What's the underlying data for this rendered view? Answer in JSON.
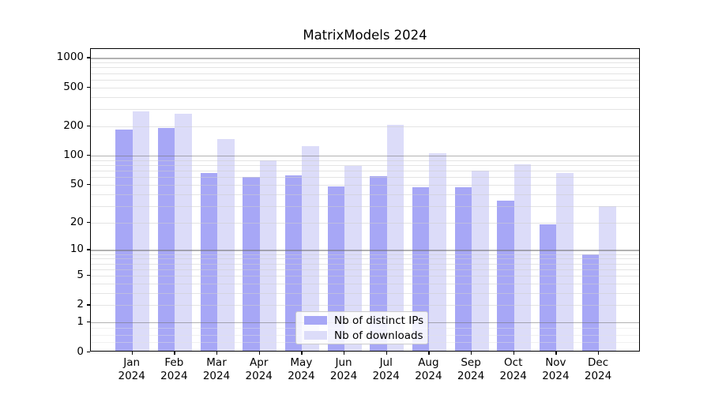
{
  "title": "MatrixModels 2024",
  "colors": {
    "ips_bar": "#a7a7f6",
    "downloads_bar": "#dcdcf9",
    "grid_major": "#b3b3b3",
    "grid_minor": "#e7e7e7",
    "spine": "#000000",
    "background": "#ffffff"
  },
  "legend": {
    "items": [
      {
        "label": "Nb of distinct IPs",
        "swatch_color": "#a7a7f6"
      },
      {
        "label": "Nb of downloads",
        "swatch_color": "#dcdcf9"
      }
    ]
  },
  "chart_data": {
    "type": "bar",
    "title": "MatrixModels 2024",
    "categories": [
      "Jan",
      "Feb",
      "Mar",
      "Apr",
      "May",
      "Jun",
      "Jul",
      "Aug",
      "Sep",
      "Oct",
      "Nov",
      "Dec"
    ],
    "category_year": "2024",
    "series": [
      {
        "name": "Nb of distinct IPs",
        "color": "#a7a7f6",
        "values": [
          184,
          192,
          66,
          60,
          62,
          48,
          61,
          47,
          47,
          34,
          19,
          9
        ]
      },
      {
        "name": "Nb of downloads",
        "color": "#dcdcf9",
        "values": [
          282,
          270,
          147,
          90,
          125,
          78,
          206,
          105,
          70,
          81,
          66,
          30
        ]
      }
    ],
    "xlabel": "",
    "ylabel": "",
    "y_scale": "log10(1+x)",
    "y_ticks": [
      0,
      1,
      2,
      5,
      10,
      20,
      50,
      100,
      200,
      500,
      1000
    ],
    "y_major_gridlines": [
      1,
      10,
      100,
      1000
    ],
    "y_minor_gridlines": [
      2,
      3,
      4,
      5,
      6,
      7,
      8,
      9,
      20,
      30,
      40,
      50,
      60,
      70,
      80,
      90,
      200,
      300,
      400,
      500,
      600,
      700,
      800,
      900
    ],
    "y_subunit_gridlines": [
      0.25,
      0.5,
      0.75
    ],
    "ylim": [
      0,
      1230
    ],
    "grid": true,
    "grid_above_bars": true,
    "legend_position": "lower-center"
  }
}
